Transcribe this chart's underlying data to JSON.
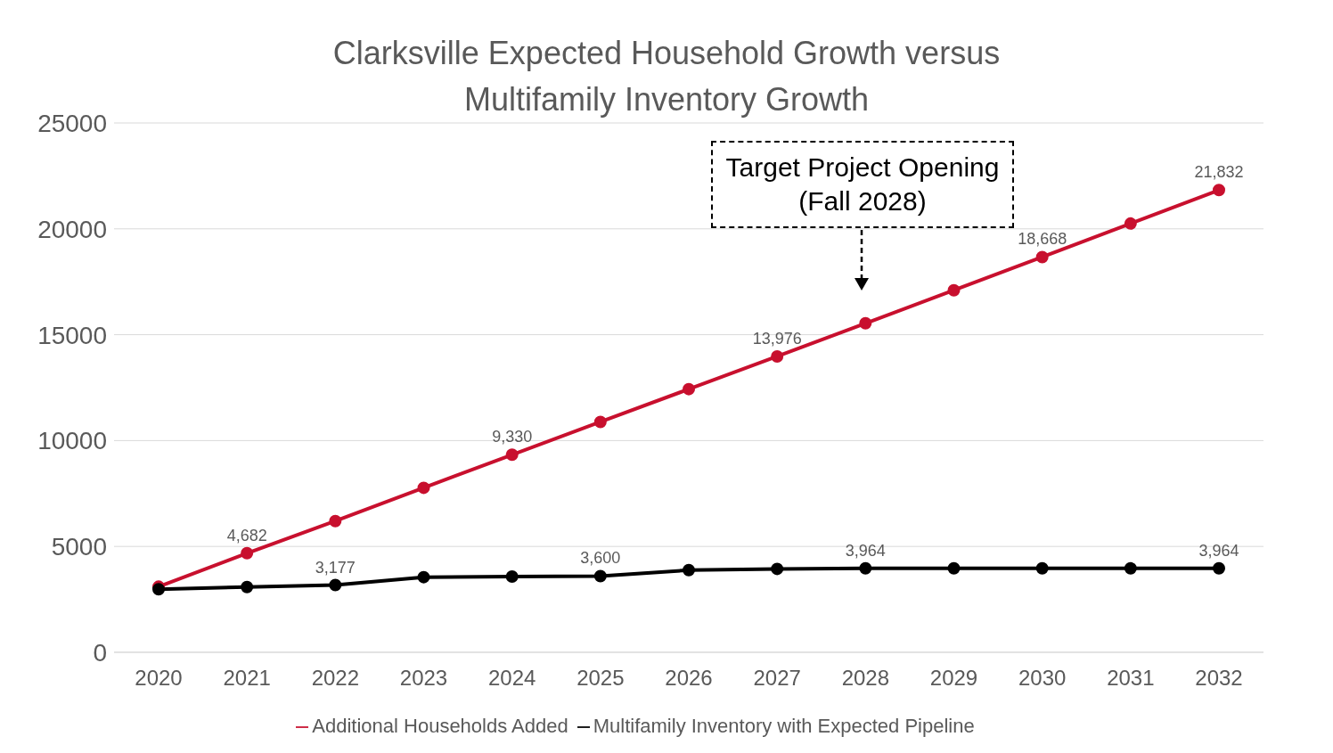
{
  "chart_data": {
    "type": "line",
    "title": "Clarksville Expected Household Growth versus Multifamily Inventory Growth",
    "categories": [
      "2020",
      "2021",
      "2022",
      "2023",
      "2024",
      "2025",
      "2026",
      "2027",
      "2028",
      "2029",
      "2030",
      "2031",
      "2032"
    ],
    "series": [
      {
        "name": "Additional Households Added",
        "color": "#c8102e",
        "values": [
          3100,
          4682,
          6200,
          7770,
          9330,
          10880,
          12430,
          13976,
          15540,
          17100,
          18668,
          20250,
          21832
        ],
        "value_labels": [
          null,
          "4,682",
          null,
          null,
          "9,330",
          null,
          null,
          "13,976",
          null,
          null,
          "18,668",
          null,
          "21,832"
        ]
      },
      {
        "name": "Multifamily Inventory with Expected Pipeline",
        "color": "#000000",
        "values": [
          2980,
          3080,
          3177,
          3550,
          3580,
          3600,
          3880,
          3940,
          3964,
          3964,
          3964,
          3964,
          3964
        ],
        "value_labels": [
          null,
          null,
          "3,177",
          null,
          null,
          "3,600",
          null,
          null,
          "3,964",
          null,
          null,
          null,
          "3,964"
        ]
      }
    ],
    "ylim": [
      0,
      25000
    ],
    "yticks": [
      0,
      5000,
      10000,
      15000,
      20000,
      25000
    ],
    "grid": "y",
    "legend": "bottom",
    "marker": "circle",
    "line_style": "solid",
    "annotations": [
      "Target Project Opening (Fall 2028)"
    ]
  }
}
